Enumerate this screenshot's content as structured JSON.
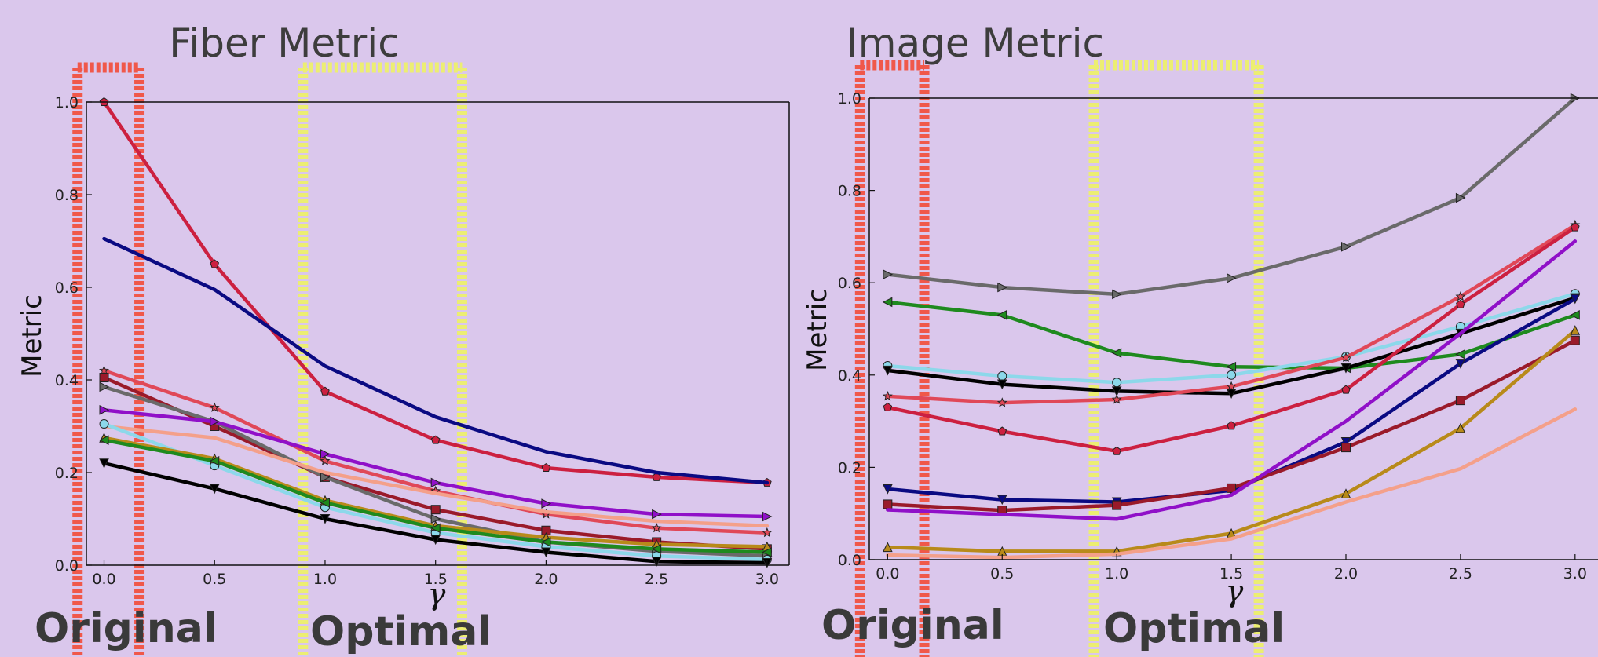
{
  "colors": {
    "background": "#dac7ec",
    "original_region": "#f0584a",
    "optimal_region": "#ecee72"
  },
  "regions": {
    "original": {
      "label": "Original",
      "x_range": [
        -0.12,
        0.16
      ]
    },
    "optimal": {
      "label": "Optimal",
      "x_range": [
        0.9,
        1.62
      ]
    }
  },
  "chart_data": [
    {
      "type": "line",
      "title": "Fiber Metric",
      "xlabel": "γ",
      "ylabel": "Metric",
      "xlim": [
        -0.08,
        3.1
      ],
      "ylim": [
        0,
        1.0
      ],
      "x": [
        0.0,
        0.5,
        1.0,
        1.5,
        2.0,
        2.5,
        3.0
      ],
      "x_ticks": [
        "0.0",
        "0.5",
        "1.0",
        "1.5",
        "2.0",
        "2.5",
        "3.0"
      ],
      "y_ticks": [
        "0.0",
        "0.2",
        "0.4",
        "0.6",
        "0.8",
        "1.0"
      ],
      "grid": false,
      "series": [
        {
          "color": "#cc2040",
          "marker": "pentagon",
          "values": [
            1.0,
            0.65,
            0.375,
            0.27,
            0.21,
            0.19,
            0.178
          ]
        },
        {
          "color": "#0a0a82",
          "marker": "none",
          "values": [
            0.705,
            0.595,
            0.43,
            0.32,
            0.245,
            0.2,
            0.178
          ]
        },
        {
          "color": "#e04858",
          "marker": "star",
          "values": [
            0.42,
            0.34,
            0.225,
            0.16,
            0.11,
            0.08,
            0.07
          ]
        },
        {
          "color": "#9a1a2a",
          "marker": "square",
          "values": [
            0.405,
            0.3,
            0.19,
            0.12,
            0.075,
            0.05,
            0.035
          ]
        },
        {
          "color": "#6a6a6a",
          "marker": "triangle-right",
          "values": [
            0.385,
            0.31,
            0.19,
            0.1,
            0.05,
            0.03,
            0.02
          ]
        },
        {
          "color": "#9010c8",
          "marker": "triangle-right",
          "values": [
            0.335,
            0.31,
            0.24,
            0.178,
            0.133,
            0.11,
            0.105
          ]
        },
        {
          "color": "#f4a08a",
          "marker": "none",
          "values": [
            0.3,
            0.275,
            0.2,
            0.155,
            0.115,
            0.095,
            0.085
          ]
        },
        {
          "color": "#8cd8ea",
          "marker": "circle",
          "values": [
            0.305,
            0.215,
            0.125,
            0.07,
            0.04,
            0.02,
            0.012
          ]
        },
        {
          "color": "#b88a1a",
          "marker": "triangle-up",
          "values": [
            0.275,
            0.23,
            0.14,
            0.085,
            0.06,
            0.045,
            0.04
          ]
        },
        {
          "color": "#1e8a1e",
          "marker": "triangle-left",
          "values": [
            0.27,
            0.225,
            0.135,
            0.08,
            0.05,
            0.035,
            0.028
          ]
        },
        {
          "color": "#000000",
          "marker": "triangle-down",
          "values": [
            0.22,
            0.165,
            0.1,
            0.055,
            0.028,
            0.008,
            0.005
          ]
        }
      ]
    },
    {
      "type": "line",
      "title": "Image Metric",
      "xlabel": "γ",
      "ylabel": "Metric",
      "xlim": [
        -0.08,
        3.1
      ],
      "ylim": [
        0,
        1.0
      ],
      "x": [
        0.0,
        0.5,
        1.0,
        1.5,
        2.0,
        2.5,
        3.0
      ],
      "x_ticks": [
        "0.0",
        "0.5",
        "1.0",
        "1.5",
        "2.0",
        "2.5",
        "3.0"
      ],
      "y_ticks": [
        "0.0",
        "0.2",
        "0.4",
        "0.6",
        "0.8",
        "1.0"
      ],
      "grid": false,
      "series": [
        {
          "color": "#6a6a6a",
          "marker": "triangle-right",
          "values": [
            0.618,
            0.59,
            0.575,
            0.61,
            0.678,
            0.784,
            1.0
          ]
        },
        {
          "color": "#1e8a1e",
          "marker": "triangle-left",
          "values": [
            0.558,
            0.53,
            0.448,
            0.418,
            0.415,
            0.445,
            0.53
          ]
        },
        {
          "color": "#8cd8ea",
          "marker": "circle",
          "values": [
            0.42,
            0.398,
            0.384,
            0.4,
            0.44,
            0.505,
            0.576
          ]
        },
        {
          "color": "#000000",
          "marker": "triangle-down",
          "values": [
            0.41,
            0.38,
            0.365,
            0.36,
            0.415,
            0.49,
            0.567
          ]
        },
        {
          "color": "#e04858",
          "marker": "star",
          "values": [
            0.354,
            0.34,
            0.347,
            0.375,
            0.438,
            0.57,
            0.725
          ]
        },
        {
          "color": "#cc2040",
          "marker": "pentagon",
          "values": [
            0.33,
            0.278,
            0.235,
            0.29,
            0.368,
            0.553,
            0.72
          ]
        },
        {
          "color": "#0a0a82",
          "marker": "triangle-down",
          "values": [
            0.153,
            0.13,
            0.125,
            0.15,
            0.255,
            0.425,
            0.565
          ]
        },
        {
          "color": "#9a1a2a",
          "marker": "square",
          "values": [
            0.12,
            0.107,
            0.118,
            0.155,
            0.243,
            0.345,
            0.475
          ]
        },
        {
          "color": "#9010c8",
          "marker": "none",
          "values": [
            0.108,
            0.098,
            0.088,
            0.14,
            0.3,
            0.49,
            0.69
          ]
        },
        {
          "color": "#b88a1a",
          "marker": "triangle-up",
          "values": [
            0.027,
            0.018,
            0.018,
            0.057,
            0.143,
            0.285,
            0.497
          ]
        },
        {
          "color": "#f4a08a",
          "marker": "none",
          "values": [
            0.01,
            0.005,
            0.012,
            0.045,
            0.125,
            0.197,
            0.326
          ]
        }
      ]
    }
  ]
}
